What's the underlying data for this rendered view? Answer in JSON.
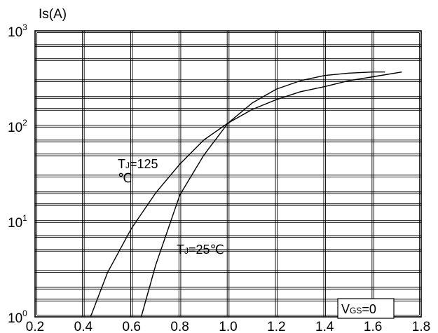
{
  "chart_data": {
    "type": "line",
    "title": "",
    "ylabel": "Is(A)",
    "xlabel": "",
    "x_scale": "linear",
    "y_scale": "log",
    "xlim": [
      0.2,
      1.8
    ],
    "ylim": [
      1,
      1000
    ],
    "grid": true,
    "x_ticks": [
      "0.2",
      "0.4",
      "0.6",
      "0.8",
      "1.0",
      "1.2",
      "1.4",
      "1.6",
      "1.8"
    ],
    "y_ticks": [
      {
        "base": "10",
        "exp": "3",
        "value": 1000
      },
      {
        "base": "10",
        "exp": "2",
        "value": 100
      },
      {
        "base": "10",
        "exp": "1",
        "value": 10
      },
      {
        "base": "10",
        "exp": "0",
        "value": 1
      }
    ],
    "series": [
      {
        "name": "TJ=125 ℃",
        "x": [
          0.43,
          0.5,
          0.6,
          0.7,
          0.8,
          0.9,
          1.0,
          1.1,
          1.2,
          1.3,
          1.4,
          1.5,
          1.6,
          1.72
        ],
        "y": [
          1,
          2.9,
          8.5,
          20,
          40,
          72,
          108,
          150,
          190,
          230,
          260,
          300,
          330,
          370
        ]
      },
      {
        "name": "TJ=25℃",
        "x": [
          0.64,
          0.7,
          0.8,
          0.9,
          1.0,
          1.1,
          1.2,
          1.3,
          1.4,
          1.5,
          1.6,
          1.65
        ],
        "y": [
          1,
          3.5,
          19,
          50,
          108,
          175,
          245,
          300,
          340,
          360,
          370,
          370
        ]
      }
    ],
    "annotations": {
      "tj125_line1": "TJ=125",
      "tj125_line2": "℃",
      "tj25": "TJ=25℃",
      "vgs": "VGS=0"
    }
  }
}
